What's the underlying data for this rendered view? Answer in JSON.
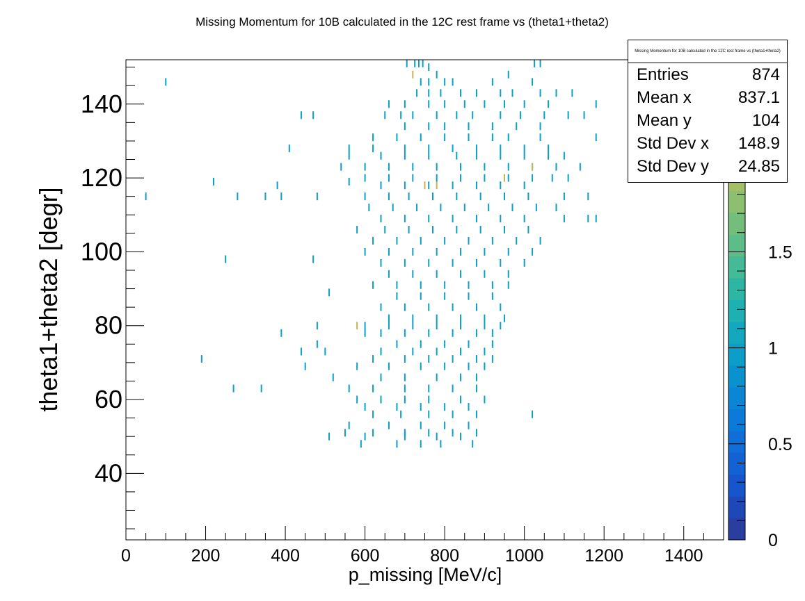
{
  "chart_data": {
    "type": "heatmap",
    "title": "Missing Momentum for 10B calculated in the 12C rest frame vs (theta1+theta2)",
    "xlabel": "p_missing [MeV/c]",
    "ylabel": "theta1+theta2 [degr]",
    "xlim": [
      0,
      1500
    ],
    "ylim": [
      22,
      152
    ],
    "x_ticks": [
      0,
      200,
      400,
      600,
      800,
      1000,
      1200,
      1400
    ],
    "y_ticks": [
      40,
      60,
      80,
      100,
      120,
      140
    ],
    "colorbar": {
      "range": [
        0,
        2.5
      ],
      "ticks": [
        0,
        0.5,
        1,
        1.5,
        2
      ],
      "ticks_display": [
        "0",
        "0.5",
        "1",
        "1.5",
        "2"
      ],
      "colors": [
        "#2a3ea0",
        "#1e48b8",
        "#1655cc",
        "#1262d4",
        "#0f6ed8",
        "#0b7ad8",
        "#0a86d4",
        "#0a92cf",
        "#0c9ec8",
        "#14a8be",
        "#1fb0b2",
        "#2eb6a4",
        "#44ba96",
        "#5cbd88",
        "#74be7c",
        "#8cbf70",
        "#a4c066",
        "#bcbc5e",
        "#d2b654",
        "#e4ae4a",
        "#f0a44a",
        "#f89a4a"
      ]
    },
    "points": [
      [
        705,
        151
      ],
      [
        725,
        151
      ],
      [
        735,
        151
      ],
      [
        745,
        151
      ],
      [
        760,
        150
      ],
      [
        1025,
        151
      ],
      [
        1040,
        151
      ],
      [
        100,
        146
      ],
      [
        740,
        146
      ],
      [
        760,
        146
      ],
      [
        780,
        148
      ],
      [
        800,
        146
      ],
      [
        820,
        146
      ],
      [
        920,
        146
      ],
      [
        960,
        148
      ],
      [
        1020,
        146
      ],
      [
        730,
        143
      ],
      [
        760,
        143
      ],
      [
        790,
        143
      ],
      [
        840,
        143
      ],
      [
        880,
        143
      ],
      [
        940,
        143
      ],
      [
        970,
        143
      ],
      [
        1040,
        143
      ],
      [
        1080,
        143
      ],
      [
        1120,
        143
      ],
      [
        660,
        140
      ],
      [
        700,
        140
      ],
      [
        760,
        140
      ],
      [
        800,
        140
      ],
      [
        850,
        140
      ],
      [
        900,
        140
      ],
      [
        950,
        140
      ],
      [
        1000,
        140
      ],
      [
        1060,
        140
      ],
      [
        1180,
        140
      ],
      [
        440,
        137
      ],
      [
        470,
        137
      ],
      [
        650,
        137
      ],
      [
        690,
        137
      ],
      [
        720,
        137
      ],
      [
        780,
        137
      ],
      [
        830,
        137
      ],
      [
        870,
        137
      ],
      [
        940,
        137
      ],
      [
        990,
        137
      ],
      [
        1050,
        137
      ],
      [
        1110,
        137
      ],
      [
        1150,
        137
      ],
      [
        700,
        134
      ],
      [
        760,
        134
      ],
      [
        800,
        134
      ],
      [
        860,
        134
      ],
      [
        920,
        134
      ],
      [
        980,
        134
      ],
      [
        1040,
        134
      ],
      [
        620,
        131
      ],
      [
        680,
        131
      ],
      [
        740,
        131
      ],
      [
        800,
        131
      ],
      [
        860,
        131
      ],
      [
        920,
        131
      ],
      [
        960,
        131
      ],
      [
        1040,
        131
      ],
      [
        1180,
        131
      ],
      [
        410,
        128
      ],
      [
        560,
        128
      ],
      [
        620,
        128
      ],
      [
        700,
        128
      ],
      [
        760,
        128
      ],
      [
        820,
        128
      ],
      [
        880,
        128
      ],
      [
        940,
        128
      ],
      [
        1000,
        128
      ],
      [
        1060,
        128
      ],
      [
        560,
        126
      ],
      [
        640,
        126
      ],
      [
        700,
        126
      ],
      [
        760,
        126
      ],
      [
        830,
        126
      ],
      [
        880,
        126
      ],
      [
        940,
        126
      ],
      [
        1000,
        126
      ],
      [
        1060,
        126
      ],
      [
        1100,
        126
      ],
      [
        540,
        123
      ],
      [
        600,
        123
      ],
      [
        660,
        123
      ],
      [
        720,
        123
      ],
      [
        780,
        123
      ],
      [
        840,
        123
      ],
      [
        900,
        123
      ],
      [
        960,
        123
      ],
      [
        1020,
        123
      ],
      [
        1080,
        123
      ],
      [
        1140,
        123
      ],
      [
        600,
        120
      ],
      [
        660,
        120
      ],
      [
        720,
        120
      ],
      [
        780,
        120
      ],
      [
        840,
        120
      ],
      [
        900,
        120
      ],
      [
        960,
        120
      ],
      [
        1020,
        120
      ],
      [
        1070,
        120
      ],
      [
        1110,
        120
      ],
      [
        220,
        119
      ],
      [
        380,
        118
      ],
      [
        560,
        119
      ],
      [
        640,
        118
      ],
      [
        700,
        118
      ],
      [
        760,
        118
      ],
      [
        820,
        118
      ],
      [
        880,
        118
      ],
      [
        940,
        118
      ],
      [
        1000,
        118
      ],
      [
        50,
        115
      ],
      [
        280,
        115
      ],
      [
        350,
        115
      ],
      [
        390,
        115
      ],
      [
        480,
        115
      ],
      [
        600,
        115
      ],
      [
        660,
        115
      ],
      [
        710,
        115
      ],
      [
        770,
        115
      ],
      [
        830,
        115
      ],
      [
        890,
        115
      ],
      [
        950,
        115
      ],
      [
        1010,
        115
      ],
      [
        1100,
        115
      ],
      [
        1160,
        115
      ],
      [
        610,
        112
      ],
      [
        670,
        112
      ],
      [
        730,
        112
      ],
      [
        790,
        112
      ],
      [
        850,
        112
      ],
      [
        910,
        112
      ],
      [
        970,
        112
      ],
      [
        1030,
        112
      ],
      [
        1080,
        112
      ],
      [
        640,
        109
      ],
      [
        700,
        109
      ],
      [
        760,
        109
      ],
      [
        820,
        109
      ],
      [
        880,
        109
      ],
      [
        940,
        109
      ],
      [
        1000,
        109
      ],
      [
        1100,
        109
      ],
      [
        1160,
        109
      ],
      [
        1180,
        109
      ],
      [
        580,
        106
      ],
      [
        650,
        106
      ],
      [
        710,
        106
      ],
      [
        770,
        106
      ],
      [
        830,
        106
      ],
      [
        890,
        106
      ],
      [
        950,
        106
      ],
      [
        1010,
        106
      ],
      [
        620,
        103
      ],
      [
        680,
        103
      ],
      [
        740,
        103
      ],
      [
        800,
        103
      ],
      [
        860,
        103
      ],
      [
        920,
        103
      ],
      [
        980,
        103
      ],
      [
        1040,
        103
      ],
      [
        600,
        100
      ],
      [
        660,
        100
      ],
      [
        720,
        100
      ],
      [
        780,
        100
      ],
      [
        840,
        100
      ],
      [
        900,
        100
      ],
      [
        960,
        100
      ],
      [
        1020,
        100
      ],
      [
        250,
        98
      ],
      [
        470,
        98
      ],
      [
        640,
        97
      ],
      [
        700,
        97
      ],
      [
        760,
        97
      ],
      [
        820,
        97
      ],
      [
        880,
        97
      ],
      [
        940,
        97
      ],
      [
        1000,
        97
      ],
      [
        660,
        94
      ],
      [
        720,
        94
      ],
      [
        780,
        94
      ],
      [
        840,
        94
      ],
      [
        900,
        94
      ],
      [
        960,
        94
      ],
      [
        620,
        91
      ],
      [
        680,
        91
      ],
      [
        740,
        91
      ],
      [
        800,
        91
      ],
      [
        860,
        91
      ],
      [
        920,
        91
      ],
      [
        960,
        91
      ],
      [
        510,
        89
      ],
      [
        680,
        88
      ],
      [
        740,
        88
      ],
      [
        800,
        88
      ],
      [
        860,
        88
      ],
      [
        920,
        88
      ],
      [
        640,
        85
      ],
      [
        700,
        85
      ],
      [
        760,
        85
      ],
      [
        820,
        85
      ],
      [
        880,
        85
      ],
      [
        940,
        85
      ],
      [
        660,
        82
      ],
      [
        720,
        82
      ],
      [
        780,
        82
      ],
      [
        840,
        82
      ],
      [
        900,
        82
      ],
      [
        950,
        82
      ],
      [
        480,
        80
      ],
      [
        600,
        80
      ],
      [
        660,
        80
      ],
      [
        720,
        80
      ],
      [
        780,
        80
      ],
      [
        840,
        80
      ],
      [
        900,
        80
      ],
      [
        940,
        80
      ],
      [
        390,
        78
      ],
      [
        600,
        78
      ],
      [
        640,
        78
      ],
      [
        700,
        78
      ],
      [
        760,
        78
      ],
      [
        820,
        78
      ],
      [
        880,
        78
      ],
      [
        920,
        78
      ],
      [
        480,
        75
      ],
      [
        680,
        75
      ],
      [
        740,
        75
      ],
      [
        800,
        75
      ],
      [
        860,
        75
      ],
      [
        920,
        75
      ],
      [
        440,
        73
      ],
      [
        500,
        73
      ],
      [
        640,
        73
      ],
      [
        720,
        73
      ],
      [
        780,
        73
      ],
      [
        840,
        73
      ],
      [
        900,
        73
      ],
      [
        190,
        71
      ],
      [
        620,
        71
      ],
      [
        700,
        71
      ],
      [
        760,
        71
      ],
      [
        820,
        71
      ],
      [
        880,
        71
      ],
      [
        920,
        71
      ],
      [
        450,
        69
      ],
      [
        580,
        69
      ],
      [
        660,
        69
      ],
      [
        740,
        69
      ],
      [
        800,
        69
      ],
      [
        860,
        69
      ],
      [
        900,
        69
      ],
      [
        520,
        66
      ],
      [
        640,
        66
      ],
      [
        700,
        66
      ],
      [
        780,
        66
      ],
      [
        840,
        66
      ],
      [
        880,
        66
      ],
      [
        270,
        63
      ],
      [
        340,
        63
      ],
      [
        560,
        63
      ],
      [
        620,
        63
      ],
      [
        700,
        63
      ],
      [
        760,
        63
      ],
      [
        820,
        63
      ],
      [
        880,
        63
      ],
      [
        580,
        60
      ],
      [
        640,
        60
      ],
      [
        700,
        60
      ],
      [
        760,
        60
      ],
      [
        840,
        60
      ],
      [
        900,
        60
      ],
      [
        600,
        58
      ],
      [
        680,
        58
      ],
      [
        740,
        58
      ],
      [
        800,
        58
      ],
      [
        860,
        58
      ],
      [
        620,
        56
      ],
      [
        690,
        56
      ],
      [
        760,
        56
      ],
      [
        820,
        56
      ],
      [
        880,
        56
      ],
      [
        1020,
        56
      ],
      [
        560,
        53
      ],
      [
        660,
        53
      ],
      [
        740,
        53
      ],
      [
        800,
        53
      ],
      [
        860,
        53
      ],
      [
        550,
        51
      ],
      [
        620,
        51
      ],
      [
        700,
        51
      ],
      [
        760,
        51
      ],
      [
        820,
        51
      ],
      [
        880,
        51
      ],
      [
        510,
        50
      ],
      [
        600,
        50
      ],
      [
        700,
        50
      ],
      [
        780,
        50
      ],
      [
        840,
        50
      ],
      [
        590,
        48
      ],
      [
        680,
        48
      ],
      [
        740,
        48
      ],
      [
        790,
        48
      ],
      [
        870,
        48
      ]
    ],
    "bright_points": [
      [
        720,
        148
      ],
      [
        750,
        118
      ],
      [
        780,
        118
      ],
      [
        950,
        120
      ],
      [
        580,
        80
      ],
      [
        1020,
        123
      ]
    ],
    "stats": {
      "title": "Missing Momentum for 10B calculated in the 12C rest frame vs (theta1+theta2)",
      "rows": [
        {
          "label": "Entries",
          "value": "874"
        },
        {
          "label": "Mean x",
          "value": "837.1"
        },
        {
          "label": "Mean y",
          "value": "104"
        },
        {
          "label": "Std Dev x",
          "value": "148.9"
        },
        {
          "label": "Std Dev y",
          "value": "24.85"
        }
      ]
    }
  }
}
